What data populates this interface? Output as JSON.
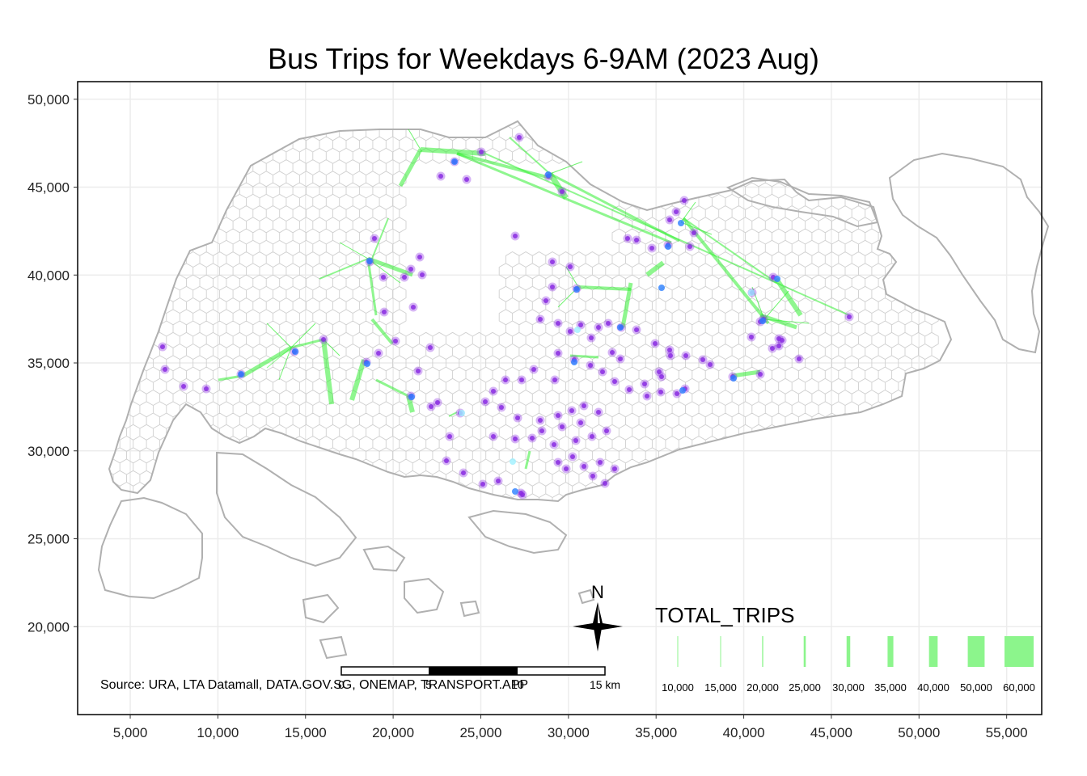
{
  "title": "Bus Trips for Weekdays 6-9AM (2023 Aug)",
  "source": "Source: URA, LTA Datamall, DATA.GOV.SG, ONEMAP, TRANSPORT.APP",
  "north_label": "N",
  "scalebar": {
    "labels": [
      "0",
      "5",
      "10",
      "15 km"
    ]
  },
  "legend": {
    "title": "TOTAL_TRIPS",
    "color": "#8cf58c",
    "items": [
      {
        "label": "10,000",
        "value": 10000
      },
      {
        "label": "15,000",
        "value": 15000
      },
      {
        "label": "20,000",
        "value": 20000
      },
      {
        "label": "25,000",
        "value": 25000
      },
      {
        "label": "30,000",
        "value": 30000
      },
      {
        "label": "35,000",
        "value": 35000
      },
      {
        "label": "40,000",
        "value": 40000
      },
      {
        "label": "50,000",
        "value": 50000
      },
      {
        "label": "60,000",
        "value": 60000
      }
    ]
  },
  "colors": {
    "flow": "#33ee33",
    "stop": "#8a2be2",
    "stop_alt": "#2a7fff",
    "hex": "#d0d0d0",
    "coast": "#b0b0b0",
    "grid": "#ececec"
  },
  "chart_data": {
    "type": "map",
    "title": "Bus Trips for Weekdays 6-9AM (2023 Aug)",
    "xlim": [
      2000,
      57000
    ],
    "ylim": [
      15000,
      51000
    ],
    "x_ticks": [
      5000,
      10000,
      15000,
      20000,
      25000,
      30000,
      35000,
      40000,
      45000,
      50000,
      55000
    ],
    "x_tick_labels": [
      "5,000",
      "10,000",
      "15,000",
      "20,000",
      "25,000",
      "30,000",
      "35,000",
      "40,000",
      "45,000",
      "50,000",
      "55,000"
    ],
    "y_ticks": [
      20000,
      25000,
      30000,
      35000,
      40000,
      45000,
      50000
    ],
    "y_tick_labels": [
      "20,000",
      "25,000",
      "30,000",
      "35,000",
      "40,000",
      "45,000",
      "50,000"
    ],
    "grid": true,
    "legend_placement": "bottom-right"
  }
}
